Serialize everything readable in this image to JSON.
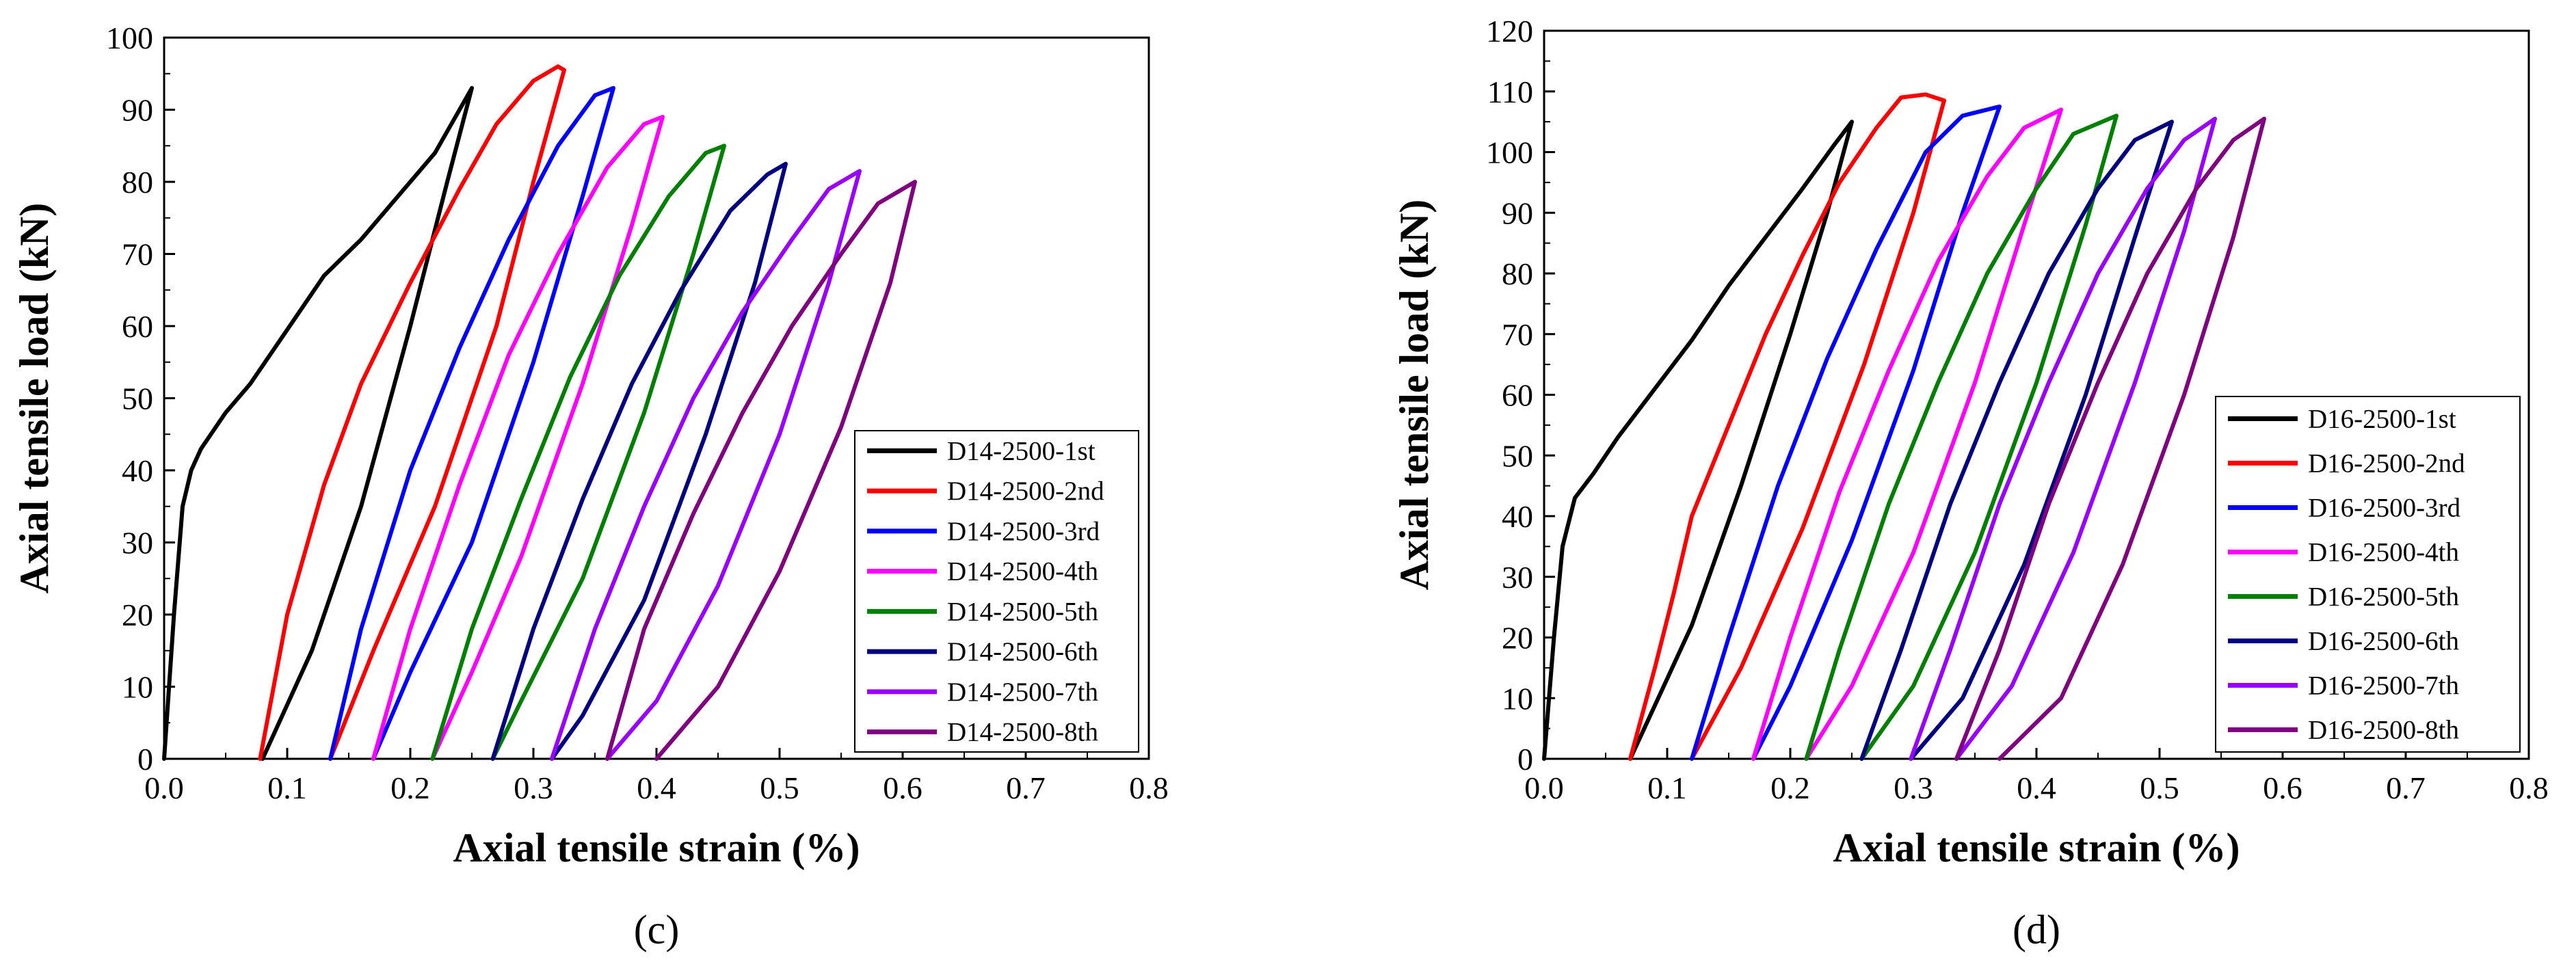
{
  "chart_data": [
    {
      "type": "line",
      "xlabel": "Axial tensile strain (%)",
      "ylabel": "Axial tensile load (kN)",
      "panel_label": "(c)",
      "xlim": [
        0.0,
        0.8
      ],
      "ylim": [
        0,
        100
      ],
      "xticks": [
        "0.0",
        "0.1",
        "0.2",
        "0.3",
        "0.4",
        "0.5",
        "0.6",
        "0.7",
        "0.8"
      ],
      "yticks": [
        "0",
        "10",
        "20",
        "30",
        "40",
        "50",
        "60",
        "70",
        "80",
        "90",
        "100"
      ],
      "legend_position": "lower-right",
      "series": [
        {
          "name": "D14-2500-1st",
          "color": "#000000",
          "load": [
            [
              0.0,
              0
            ],
            [
              0.008,
              20
            ],
            [
              0.015,
              35
            ],
            [
              0.022,
              40
            ],
            [
              0.03,
              43
            ],
            [
              0.05,
              48
            ],
            [
              0.07,
              52
            ],
            [
              0.09,
              57
            ],
            [
              0.11,
              62
            ],
            [
              0.13,
              67
            ],
            [
              0.16,
              72
            ],
            [
              0.19,
              78
            ],
            [
              0.22,
              84
            ],
            [
              0.25,
              93
            ]
          ],
          "unload": [
            [
              0.25,
              93
            ],
            [
              0.23,
              80
            ],
            [
              0.2,
              60
            ],
            [
              0.16,
              35
            ],
            [
              0.12,
              15
            ],
            [
              0.08,
              0
            ]
          ]
        },
        {
          "name": "D14-2500-2nd",
          "color": "#ff0000",
          "load": [
            [
              0.078,
              0
            ],
            [
              0.1,
              20
            ],
            [
              0.13,
              38
            ],
            [
              0.16,
              52
            ],
            [
              0.2,
              66
            ],
            [
              0.24,
              79
            ],
            [
              0.27,
              88
            ],
            [
              0.3,
              94
            ],
            [
              0.32,
              96
            ],
            [
              0.325,
              95.5
            ]
          ],
          "unload": [
            [
              0.325,
              95.5
            ],
            [
              0.3,
              80
            ],
            [
              0.27,
              60
            ],
            [
              0.22,
              35
            ],
            [
              0.17,
              15
            ],
            [
              0.135,
              0
            ]
          ]
        },
        {
          "name": "D14-2500-3rd",
          "color": "#0000ff",
          "load": [
            [
              0.135,
              0
            ],
            [
              0.16,
              18
            ],
            [
              0.2,
              40
            ],
            [
              0.24,
              57
            ],
            [
              0.28,
              72
            ],
            [
              0.32,
              85
            ],
            [
              0.35,
              92
            ],
            [
              0.365,
              93
            ]
          ],
          "unload": [
            [
              0.365,
              93
            ],
            [
              0.34,
              78
            ],
            [
              0.3,
              55
            ],
            [
              0.25,
              30
            ],
            [
              0.2,
              12
            ],
            [
              0.17,
              0
            ]
          ]
        },
        {
          "name": "D14-2500-4th",
          "color": "#ff00ff",
          "load": [
            [
              0.17,
              0
            ],
            [
              0.2,
              18
            ],
            [
              0.24,
              38
            ],
            [
              0.28,
              56
            ],
            [
              0.32,
              70
            ],
            [
              0.36,
              82
            ],
            [
              0.39,
              88
            ],
            [
              0.405,
              89
            ]
          ],
          "unload": [
            [
              0.405,
              89
            ],
            [
              0.38,
              74
            ],
            [
              0.34,
              52
            ],
            [
              0.29,
              28
            ],
            [
              0.25,
              12
            ],
            [
              0.218,
              0
            ]
          ]
        },
        {
          "name": "D14-2500-5th",
          "color": "#008000",
          "load": [
            [
              0.218,
              0
            ],
            [
              0.25,
              18
            ],
            [
              0.29,
              36
            ],
            [
              0.33,
              53
            ],
            [
              0.37,
              67
            ],
            [
              0.41,
              78
            ],
            [
              0.44,
              84
            ],
            [
              0.455,
              85
            ]
          ],
          "unload": [
            [
              0.455,
              85
            ],
            [
              0.43,
              70
            ],
            [
              0.39,
              48
            ],
            [
              0.34,
              25
            ],
            [
              0.29,
              8
            ],
            [
              0.267,
              0
            ]
          ]
        },
        {
          "name": "D14-2500-6th",
          "color": "#000080",
          "load": [
            [
              0.267,
              0
            ],
            [
              0.3,
              18
            ],
            [
              0.34,
              36
            ],
            [
              0.38,
              52
            ],
            [
              0.42,
              65
            ],
            [
              0.46,
              76
            ],
            [
              0.49,
              81
            ],
            [
              0.505,
              82.5
            ]
          ],
          "unload": [
            [
              0.505,
              82.5
            ],
            [
              0.48,
              66
            ],
            [
              0.44,
              45
            ],
            [
              0.39,
              22
            ],
            [
              0.34,
              6
            ],
            [
              0.315,
              0
            ]
          ]
        },
        {
          "name": "D14-2500-7th",
          "color": "#9900ff",
          "load": [
            [
              0.315,
              0
            ],
            [
              0.35,
              18
            ],
            [
              0.39,
              35
            ],
            [
              0.43,
              50
            ],
            [
              0.47,
              62
            ],
            [
              0.51,
              72
            ],
            [
              0.54,
              79
            ],
            [
              0.565,
              81.5
            ]
          ],
          "unload": [
            [
              0.565,
              81.5
            ],
            [
              0.54,
              66
            ],
            [
              0.5,
              45
            ],
            [
              0.45,
              24
            ],
            [
              0.4,
              8
            ],
            [
              0.36,
              0
            ]
          ]
        },
        {
          "name": "D14-2500-8th",
          "color": "#800080",
          "load": [
            [
              0.36,
              0
            ],
            [
              0.39,
              18
            ],
            [
              0.43,
              34
            ],
            [
              0.47,
              48
            ],
            [
              0.51,
              60
            ],
            [
              0.55,
              70
            ],
            [
              0.58,
              77
            ],
            [
              0.6,
              79
            ],
            [
              0.61,
              80
            ]
          ],
          "unload": [
            [
              0.61,
              80
            ],
            [
              0.59,
              66
            ],
            [
              0.55,
              46
            ],
            [
              0.5,
              26
            ],
            [
              0.45,
              10
            ],
            [
              0.4,
              0
            ]
          ]
        }
      ]
    },
    {
      "type": "line",
      "xlabel": "Axial tensile strain (%)",
      "ylabel": "Axial tensile load (kN)",
      "panel_label": "(d)",
      "xlim": [
        0.0,
        0.8
      ],
      "ylim": [
        0,
        120
      ],
      "xticks": [
        "0.0",
        "0.1",
        "0.2",
        "0.3",
        "0.4",
        "0.5",
        "0.6",
        "0.7",
        "0.8"
      ],
      "yticks": [
        "0",
        "10",
        "20",
        "30",
        "40",
        "50",
        "60",
        "70",
        "80",
        "90",
        "100",
        "110",
        "120"
      ],
      "legend_position": "lower-right",
      "series": [
        {
          "name": "D16-2500-1st",
          "color": "#000000",
          "load": [
            [
              0.0,
              0
            ],
            [
              0.008,
              20
            ],
            [
              0.015,
              35
            ],
            [
              0.025,
              43
            ],
            [
              0.04,
              47
            ],
            [
              0.06,
              53
            ],
            [
              0.09,
              61
            ],
            [
              0.12,
              69
            ],
            [
              0.15,
              78
            ],
            [
              0.18,
              86
            ],
            [
              0.21,
              94
            ],
            [
              0.235,
              101
            ],
            [
              0.25,
              105
            ]
          ],
          "unload": [
            [
              0.25,
              105
            ],
            [
              0.23,
              90
            ],
            [
              0.2,
              70
            ],
            [
              0.16,
              45
            ],
            [
              0.12,
              22
            ],
            [
              0.07,
              0
            ]
          ]
        },
        {
          "name": "D16-2500-2nd",
          "color": "#ff0000",
          "load": [
            [
              0.07,
              0
            ],
            [
              0.09,
              15
            ],
            [
              0.105,
              27
            ],
            [
              0.12,
              40
            ],
            [
              0.15,
              55
            ],
            [
              0.18,
              70
            ],
            [
              0.21,
              83
            ],
            [
              0.24,
              95
            ],
            [
              0.27,
              104
            ],
            [
              0.29,
              109
            ],
            [
              0.31,
              109.5
            ],
            [
              0.325,
              108.5
            ]
          ],
          "unload": [
            [
              0.325,
              108.5
            ],
            [
              0.3,
              90
            ],
            [
              0.26,
              65
            ],
            [
              0.21,
              38
            ],
            [
              0.16,
              15
            ],
            [
              0.12,
              0
            ]
          ]
        },
        {
          "name": "D16-2500-3rd",
          "color": "#0000ff",
          "load": [
            [
              0.12,
              0
            ],
            [
              0.15,
              20
            ],
            [
              0.19,
              45
            ],
            [
              0.23,
              66
            ],
            [
              0.27,
              84
            ],
            [
              0.31,
              100
            ],
            [
              0.34,
              106
            ],
            [
              0.37,
              107.5
            ]
          ],
          "unload": [
            [
              0.37,
              107.5
            ],
            [
              0.34,
              90
            ],
            [
              0.3,
              64
            ],
            [
              0.25,
              36
            ],
            [
              0.2,
              12
            ],
            [
              0.17,
              0
            ]
          ]
        },
        {
          "name": "D16-2500-4th",
          "color": "#ff00ff",
          "load": [
            [
              0.17,
              0
            ],
            [
              0.2,
              20
            ],
            [
              0.24,
              44
            ],
            [
              0.28,
              64
            ],
            [
              0.32,
              82
            ],
            [
              0.36,
              96
            ],
            [
              0.39,
              104
            ],
            [
              0.42,
              107
            ]
          ],
          "unload": [
            [
              0.42,
              107
            ],
            [
              0.39,
              88
            ],
            [
              0.35,
              62
            ],
            [
              0.3,
              34
            ],
            [
              0.25,
              12
            ],
            [
              0.213,
              0
            ]
          ]
        },
        {
          "name": "D16-2500-5th",
          "color": "#008000",
          "load": [
            [
              0.213,
              0
            ],
            [
              0.24,
              18
            ],
            [
              0.28,
              42
            ],
            [
              0.32,
              62
            ],
            [
              0.36,
              80
            ],
            [
              0.4,
              94
            ],
            [
              0.43,
              103
            ],
            [
              0.465,
              106
            ]
          ],
          "unload": [
            [
              0.465,
              106
            ],
            [
              0.44,
              88
            ],
            [
              0.4,
              62
            ],
            [
              0.35,
              34
            ],
            [
              0.3,
              12
            ],
            [
              0.258,
              0
            ]
          ]
        },
        {
          "name": "D16-2500-6th",
          "color": "#000080",
          "load": [
            [
              0.258,
              0
            ],
            [
              0.29,
              18
            ],
            [
              0.33,
              42
            ],
            [
              0.37,
              62
            ],
            [
              0.41,
              80
            ],
            [
              0.45,
              94
            ],
            [
              0.48,
              102
            ],
            [
              0.51,
              105
            ]
          ],
          "unload": [
            [
              0.51,
              105
            ],
            [
              0.48,
              86
            ],
            [
              0.44,
              60
            ],
            [
              0.39,
              32
            ],
            [
              0.34,
              10
            ],
            [
              0.298,
              0
            ]
          ]
        },
        {
          "name": "D16-2500-7th",
          "color": "#9900ff",
          "load": [
            [
              0.298,
              0
            ],
            [
              0.33,
              18
            ],
            [
              0.37,
              42
            ],
            [
              0.41,
              62
            ],
            [
              0.45,
              80
            ],
            [
              0.49,
              94
            ],
            [
              0.52,
              102
            ],
            [
              0.545,
              105.5
            ]
          ],
          "unload": [
            [
              0.545,
              105.5
            ],
            [
              0.52,
              87
            ],
            [
              0.48,
              62
            ],
            [
              0.43,
              34
            ],
            [
              0.38,
              12
            ],
            [
              0.335,
              0
            ]
          ]
        },
        {
          "name": "D16-2500-8th",
          "color": "#800080",
          "load": [
            [
              0.335,
              0
            ],
            [
              0.37,
              18
            ],
            [
              0.41,
              42
            ],
            [
              0.45,
              62
            ],
            [
              0.49,
              80
            ],
            [
              0.53,
              94
            ],
            [
              0.56,
              102
            ],
            [
              0.585,
              105.5
            ]
          ],
          "unload": [
            [
              0.585,
              105.5
            ],
            [
              0.56,
              86
            ],
            [
              0.52,
              60
            ],
            [
              0.47,
              32
            ],
            [
              0.42,
              10
            ],
            [
              0.37,
              0
            ]
          ]
        }
      ]
    }
  ]
}
